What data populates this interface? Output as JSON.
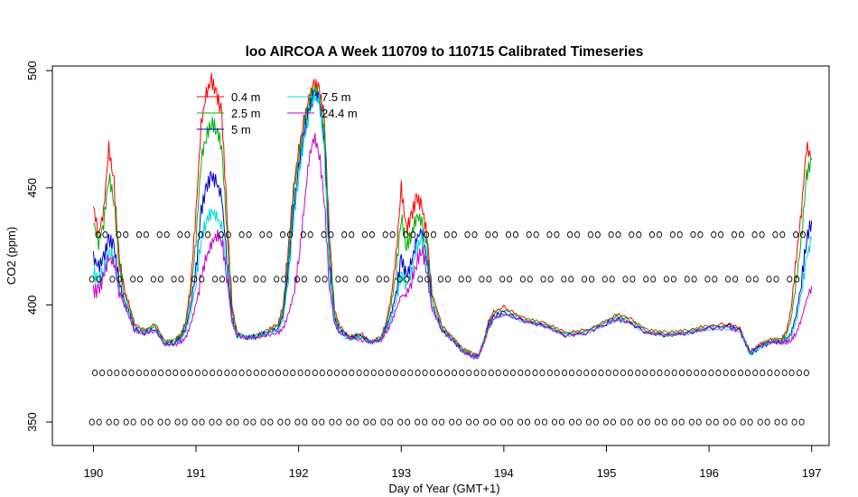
{
  "chart_data": {
    "type": "line",
    "title": "loo AIRCOA A  Week 110709 to 110715  Calibrated Timeseries",
    "xlabel": "Day of Year (GMT+1)",
    "ylabel": "CO2 (ppm)",
    "xlim": [
      189.6,
      197.17
    ],
    "ylim": [
      340,
      502
    ],
    "x_ticks": [
      190,
      191,
      192,
      193,
      194,
      195,
      196,
      197
    ],
    "y_ticks": [
      350,
      400,
      450,
      500
    ],
    "grid": false,
    "legend": {
      "placement": "top-left",
      "columns": 2
    },
    "series": [
      {
        "name": "0.4 m",
        "color": "#ff0000",
        "x": [
          190.0,
          190.05,
          190.1,
          190.15,
          190.2,
          190.25,
          190.3,
          190.35,
          190.4,
          190.5,
          190.6,
          190.7,
          190.8,
          190.85,
          190.9,
          190.95,
          191.0,
          191.05,
          191.1,
          191.15,
          191.2,
          191.25,
          191.3,
          191.35,
          191.4,
          191.5,
          191.6,
          191.7,
          191.8,
          191.85,
          191.9,
          191.95,
          192.0,
          192.05,
          192.1,
          192.15,
          192.2,
          192.25,
          192.3,
          192.35,
          192.4,
          192.5,
          192.6,
          192.7,
          192.8,
          192.85,
          192.9,
          192.95,
          193.0,
          193.05,
          193.1,
          193.15,
          193.2,
          193.25,
          193.3,
          193.4,
          193.5,
          193.6,
          193.7,
          193.75,
          193.8,
          193.85,
          193.9,
          194.0,
          194.2,
          194.4,
          194.6,
          194.8,
          195.0,
          195.1,
          195.2,
          195.4,
          195.6,
          195.8,
          196.0,
          196.2,
          196.3,
          196.4,
          196.5,
          196.6,
          196.7,
          196.75,
          196.8,
          196.85,
          196.9,
          196.95,
          197.0
        ],
        "y": [
          442,
          430,
          440,
          467,
          452,
          420,
          406,
          400,
          392,
          389,
          392,
          384,
          385,
          387,
          393,
          410,
          440,
          477,
          490,
          496,
          490,
          482,
          440,
          400,
          388,
          386,
          387,
          389,
          392,
          400,
          425,
          450,
          466,
          478,
          487,
          494,
          492,
          480,
          430,
          398,
          391,
          386,
          388,
          384,
          386,
          392,
          403,
          421,
          450,
          432,
          438,
          446,
          442,
          430,
          405,
          391,
          386,
          381,
          379,
          378,
          384,
          393,
          397,
          399,
          394,
          392,
          388,
          389,
          393,
          396,
          395,
          389,
          388,
          389,
          391,
          392,
          390,
          379,
          383,
          385,
          385,
          388,
          398,
          420,
          440,
          468,
          462
        ]
      },
      {
        "name": "2.5 m",
        "color": "#00b000",
        "x": [
          190.0,
          190.05,
          190.1,
          190.15,
          190.2,
          190.25,
          190.3,
          190.35,
          190.4,
          190.5,
          190.6,
          190.7,
          190.8,
          190.85,
          190.9,
          190.95,
          191.0,
          191.05,
          191.1,
          191.15,
          191.2,
          191.25,
          191.3,
          191.35,
          191.4,
          191.5,
          191.6,
          191.7,
          191.8,
          191.85,
          191.9,
          191.95,
          192.0,
          192.05,
          192.1,
          192.15,
          192.2,
          192.25,
          192.3,
          192.35,
          192.4,
          192.5,
          192.6,
          192.7,
          192.8,
          192.85,
          192.9,
          192.95,
          193.0,
          193.05,
          193.1,
          193.15,
          193.2,
          193.25,
          193.3,
          193.4,
          193.5,
          193.6,
          193.7,
          193.75,
          193.8,
          193.85,
          193.9,
          194.0,
          194.2,
          194.4,
          194.6,
          194.8,
          195.0,
          195.1,
          195.2,
          195.4,
          195.6,
          195.8,
          196.0,
          196.2,
          196.3,
          196.4,
          196.5,
          196.6,
          196.7,
          196.75,
          196.8,
          196.85,
          196.9,
          196.95,
          197.0
        ],
        "y": [
          436,
          426,
          435,
          455,
          445,
          418,
          405,
          399,
          391,
          389,
          391,
          384,
          385,
          387,
          392,
          405,
          428,
          462,
          472,
          478,
          475,
          468,
          432,
          398,
          388,
          386,
          387,
          389,
          391,
          398,
          420,
          447,
          463,
          476,
          486,
          492,
          490,
          476,
          425,
          396,
          390,
          386,
          387,
          384,
          386,
          391,
          400,
          414,
          438,
          425,
          430,
          438,
          436,
          426,
          403,
          390,
          386,
          381,
          379,
          378,
          384,
          392,
          396,
          398,
          394,
          392,
          388,
          389,
          393,
          395,
          394,
          389,
          388,
          389,
          391,
          391,
          390,
          380,
          383,
          385,
          385,
          387,
          394,
          410,
          428,
          455,
          462
        ]
      },
      {
        "name": "5 m",
        "color": "#0000cc",
        "x": [
          190.0,
          190.05,
          190.1,
          190.15,
          190.2,
          190.25,
          190.3,
          190.35,
          190.4,
          190.5,
          190.6,
          190.7,
          190.8,
          190.85,
          190.9,
          190.95,
          191.0,
          191.05,
          191.1,
          191.15,
          191.2,
          191.25,
          191.3,
          191.35,
          191.4,
          191.5,
          191.6,
          191.7,
          191.8,
          191.85,
          191.9,
          191.95,
          192.0,
          192.05,
          192.1,
          192.15,
          192.2,
          192.25,
          192.3,
          192.35,
          192.4,
          192.5,
          192.6,
          192.7,
          192.8,
          192.85,
          192.9,
          192.95,
          193.0,
          193.05,
          193.1,
          193.15,
          193.2,
          193.25,
          193.3,
          193.4,
          193.5,
          193.6,
          193.7,
          193.75,
          193.8,
          193.85,
          193.9,
          194.0,
          194.2,
          194.4,
          194.6,
          194.8,
          195.0,
          195.1,
          195.2,
          195.4,
          195.6,
          195.8,
          196.0,
          196.2,
          196.3,
          196.4,
          196.5,
          196.6,
          196.7,
          196.75,
          196.8,
          196.85,
          196.9,
          196.95,
          197.0
        ],
        "y": [
          420,
          416,
          420,
          428,
          425,
          410,
          402,
          397,
          390,
          388,
          390,
          383,
          384,
          386,
          390,
          400,
          415,
          440,
          450,
          455,
          452,
          446,
          420,
          395,
          387,
          386,
          387,
          388,
          390,
          396,
          415,
          440,
          458,
          472,
          483,
          490,
          488,
          470,
          418,
          394,
          389,
          386,
          387,
          384,
          385,
          390,
          396,
          405,
          420,
          412,
          418,
          428,
          432,
          420,
          400,
          389,
          385,
          380,
          378,
          378,
          383,
          391,
          395,
          397,
          393,
          391,
          387,
          388,
          392,
          394,
          393,
          388,
          387,
          388,
          390,
          391,
          389,
          379,
          382,
          384,
          384,
          385,
          388,
          396,
          410,
          428,
          436
        ]
      },
      {
        "name": "7.5 m",
        "color": "#00d8e0",
        "x": [
          190.0,
          190.05,
          190.1,
          190.15,
          190.2,
          190.25,
          190.3,
          190.35,
          190.4,
          190.5,
          190.6,
          190.7,
          190.8,
          190.85,
          190.9,
          190.95,
          191.0,
          191.05,
          191.1,
          191.15,
          191.2,
          191.25,
          191.3,
          191.35,
          191.4,
          191.5,
          191.6,
          191.7,
          191.8,
          191.85,
          191.9,
          191.95,
          192.0,
          192.05,
          192.1,
          192.15,
          192.2,
          192.25,
          192.3,
          192.35,
          192.4,
          192.5,
          192.6,
          192.7,
          192.8,
          192.85,
          192.9,
          192.95,
          193.0,
          193.05,
          193.1,
          193.15,
          193.2,
          193.25,
          193.3,
          193.4,
          193.5,
          193.6,
          193.7,
          193.75,
          193.8,
          193.85,
          193.9,
          194.0,
          194.2,
          194.4,
          194.6,
          194.8,
          195.0,
          195.1,
          195.2,
          195.4,
          195.6,
          195.8,
          196.0,
          196.2,
          196.3,
          196.4,
          196.5,
          196.6,
          196.7,
          196.75,
          196.8,
          196.85,
          196.9,
          196.95,
          197.0
        ],
        "y": [
          414,
          410,
          415,
          423,
          420,
          407,
          400,
          396,
          389,
          388,
          390,
          383,
          384,
          385,
          389,
          397,
          410,
          428,
          436,
          440,
          438,
          433,
          414,
          393,
          387,
          386,
          386,
          388,
          389,
          394,
          412,
          436,
          455,
          470,
          481,
          489,
          487,
          466,
          414,
          393,
          388,
          385,
          386,
          384,
          385,
          389,
          394,
          402,
          414,
          408,
          414,
          424,
          428,
          418,
          399,
          389,
          385,
          380,
          378,
          378,
          383,
          390,
          394,
          396,
          393,
          391,
          387,
          388,
          392,
          394,
          393,
          388,
          387,
          388,
          390,
          390,
          389,
          379,
          382,
          384,
          384,
          385,
          387,
          393,
          405,
          420,
          428
        ]
      },
      {
        "name": "24.4 m",
        "color": "#cc00cc",
        "x": [
          190.0,
          190.05,
          190.1,
          190.15,
          190.2,
          190.25,
          190.3,
          190.35,
          190.4,
          190.5,
          190.6,
          190.7,
          190.8,
          190.85,
          190.9,
          190.95,
          191.0,
          191.05,
          191.1,
          191.15,
          191.2,
          191.25,
          191.3,
          191.35,
          191.4,
          191.5,
          191.6,
          191.7,
          191.8,
          191.85,
          191.9,
          191.95,
          192.0,
          192.05,
          192.1,
          192.15,
          192.2,
          192.25,
          192.3,
          192.35,
          192.4,
          192.5,
          192.6,
          192.7,
          192.8,
          192.85,
          192.9,
          192.95,
          193.0,
          193.05,
          193.1,
          193.15,
          193.2,
          193.25,
          193.3,
          193.4,
          193.5,
          193.6,
          193.7,
          193.75,
          193.8,
          193.85,
          193.9,
          194.0,
          194.2,
          194.4,
          194.6,
          194.8,
          195.0,
          195.1,
          195.2,
          195.4,
          195.6,
          195.8,
          196.0,
          196.2,
          196.3,
          196.4,
          196.5,
          196.6,
          196.7,
          196.75,
          196.8,
          196.85,
          196.9,
          196.95,
          197.0
        ],
        "y": [
          406,
          406,
          412,
          420,
          418,
          406,
          400,
          395,
          389,
          388,
          389,
          383,
          383,
          384,
          386,
          392,
          400,
          412,
          420,
          426,
          430,
          428,
          412,
          393,
          387,
          386,
          386,
          387,
          388,
          390,
          396,
          404,
          418,
          440,
          462,
          472,
          465,
          445,
          408,
          392,
          388,
          386,
          385,
          384,
          385,
          388,
          392,
          398,
          404,
          404,
          410,
          418,
          424,
          415,
          398,
          389,
          385,
          380,
          378,
          378,
          383,
          390,
          394,
          396,
          393,
          391,
          387,
          388,
          392,
          394,
          393,
          388,
          387,
          388,
          390,
          390,
          389,
          380,
          383,
          384,
          384,
          384,
          385,
          388,
          394,
          402,
          408
        ]
      }
    ],
    "marker_series": [
      {
        "name": "",
        "y": 430,
        "spacing": 0.2,
        "start": 190.08,
        "end": 197.0
      },
      {
        "name": "",
        "y": 411,
        "spacing": 0.2,
        "start": 190.02,
        "end": 197.0
      },
      {
        "name": "",
        "y": 371,
        "spacing": 0.143,
        "start": 190.05,
        "end": 197.0
      },
      {
        "name": "",
        "y": 350,
        "spacing": 0.167,
        "start": 190.02,
        "end": 197.0
      }
    ]
  }
}
